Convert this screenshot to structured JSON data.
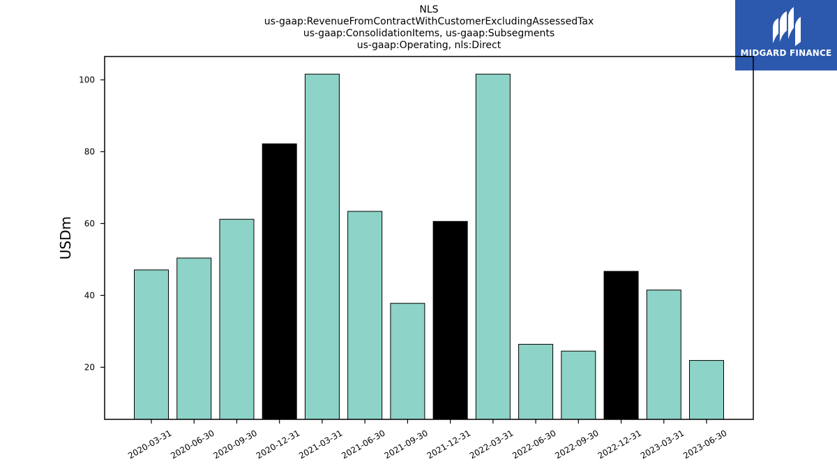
{
  "brand": {
    "name": "MIDGARD FINANCE",
    "background_color": "#2c59ad",
    "icon": "midgard-logo-icon"
  },
  "chart_data": {
    "type": "bar",
    "title_lines": [
      "NLS",
      "us-gaap:RevenueFromContractWithCustomerExcludingAssessedTax",
      "us-gaap:ConsolidationItems, us-gaap:Subsegments",
      "us-gaap:Operating, nls:Direct"
    ],
    "xlabel": "",
    "ylabel": "USDm",
    "ylim": [
      5.5,
      106.5
    ],
    "yticks": [
      20,
      40,
      60,
      80,
      100
    ],
    "grid": false,
    "categories": [
      "2020-03-31",
      "2020-06-30",
      "2020-09-30",
      "2020-12-31",
      "2021-03-31",
      "2021-06-30",
      "2021-09-30",
      "2021-12-31",
      "2022-03-31",
      "2022-06-30",
      "2022-09-30",
      "2022-12-31",
      "2023-03-31",
      "2023-06-30"
    ],
    "values": [
      47.1,
      50.4,
      61.2,
      82.2,
      101.6,
      63.4,
      37.8,
      60.6,
      101.6,
      26.4,
      24.5,
      46.7,
      41.5,
      21.9
    ],
    "bar_colors": [
      "#8dd3c7",
      "#8dd3c7",
      "#8dd3c7",
      "#000000",
      "#8dd3c7",
      "#8dd3c7",
      "#8dd3c7",
      "#000000",
      "#8dd3c7",
      "#8dd3c7",
      "#8dd3c7",
      "#000000",
      "#8dd3c7",
      "#8dd3c7"
    ],
    "edge_color": "#000000"
  }
}
